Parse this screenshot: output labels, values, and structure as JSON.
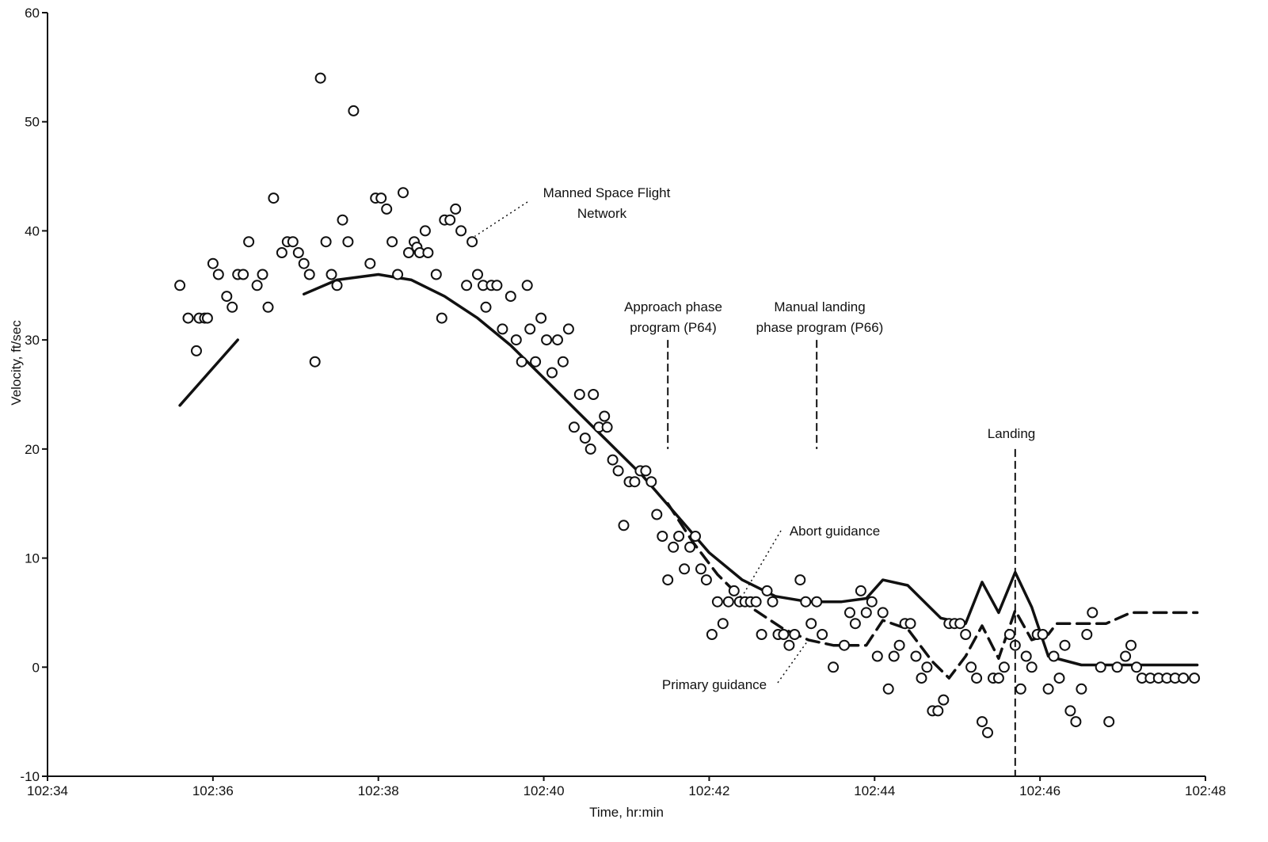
{
  "chart_data": {
    "type": "line",
    "xlabel": "Time, hr:min",
    "ylabel": "Velocity, ft/sec",
    "xlim": [
      "102:34",
      "102:48"
    ],
    "ylim": [
      -10,
      60
    ],
    "x_ticks": [
      "102:34",
      "102:36",
      "102:38",
      "102:40",
      "102:42",
      "102:44",
      "102:46",
      "102:48"
    ],
    "y_ticks": [
      -10,
      0,
      10,
      20,
      30,
      40,
      50,
      60
    ],
    "grid": false,
    "series": [
      {
        "name": "Abort guidance",
        "style": "solid",
        "points": [
          [
            "102:35:36",
            24
          ],
          [
            "102:36:18",
            30
          ],
          null,
          [
            "102:37:06",
            34.2
          ],
          [
            "102:37:30",
            35.5
          ],
          [
            "102:38:00",
            36
          ],
          [
            "102:38:24",
            35.5
          ],
          [
            "102:38:48",
            34
          ],
          [
            "102:39:12",
            32
          ],
          [
            "102:39:36",
            29.5
          ],
          [
            "102:40:00",
            26.5
          ],
          [
            "102:40:24",
            23.5
          ],
          [
            "102:40:48",
            20.5
          ],
          [
            "102:41:12",
            17.5
          ],
          [
            "102:41:36",
            14
          ],
          [
            "102:42:00",
            10.5
          ],
          [
            "102:42:24",
            8
          ],
          [
            "102:42:48",
            6.5
          ],
          [
            "102:43:12",
            6
          ],
          [
            "102:43:36",
            6
          ],
          [
            "102:43:54",
            6.3
          ],
          [
            "102:44:06",
            8
          ],
          [
            "102:44:24",
            7.5
          ],
          [
            "102:44:48",
            4.5
          ],
          [
            "102:45:06",
            4
          ],
          [
            "102:45:18",
            7.8
          ],
          [
            "102:45:30",
            5
          ],
          [
            "102:45:42",
            8.7
          ],
          [
            "102:45:54",
            5.5
          ],
          [
            "102:46:06",
            1
          ],
          [
            "102:46:30",
            0.2
          ],
          [
            "102:47:30",
            0.2
          ],
          [
            "102:47:54",
            0.2
          ]
        ]
      },
      {
        "name": "Primary guidance",
        "style": "dashed",
        "points": [
          [
            "102:41:30",
            15
          ],
          [
            "102:41:48",
            11.5
          ],
          [
            "102:42:06",
            8.5
          ],
          [
            "102:42:30",
            5.5
          ],
          [
            "102:42:54",
            3.5
          ],
          [
            "102:43:12",
            2.5
          ],
          [
            "102:43:30",
            2
          ],
          [
            "102:43:54",
            2
          ],
          [
            "102:44:06",
            4.3
          ],
          [
            "102:44:24",
            3.5
          ],
          [
            "102:44:42",
            0.5
          ],
          [
            "102:44:54",
            -1
          ],
          [
            "102:45:06",
            1
          ],
          [
            "102:45:18",
            3.8
          ],
          [
            "102:45:30",
            0.8
          ],
          [
            "102:45:42",
            5.2
          ],
          [
            "102:45:54",
            2.5
          ],
          [
            "102:46:06",
            3
          ],
          [
            "102:46:12",
            4
          ],
          [
            "102:46:48",
            4
          ],
          [
            "102:47:06",
            5
          ],
          [
            "102:47:54",
            5
          ]
        ]
      }
    ],
    "scatter": {
      "name": "Manned Space Flight Network",
      "marker": "open-circle",
      "points": [
        [
          "102:35:36",
          35
        ],
        [
          "102:35:42",
          32
        ],
        [
          "102:35:48",
          29
        ],
        [
          "102:35:50",
          32
        ],
        [
          "102:35:54",
          32
        ],
        [
          "102:35:56",
          32
        ],
        [
          "102:36:00",
          37
        ],
        [
          "102:36:04",
          36
        ],
        [
          "102:36:10",
          34
        ],
        [
          "102:36:14",
          33
        ],
        [
          "102:36:18",
          36
        ],
        [
          "102:36:22",
          36
        ],
        [
          "102:36:26",
          39
        ],
        [
          "102:36:32",
          35
        ],
        [
          "102:36:36",
          36
        ],
        [
          "102:36:40",
          33
        ],
        [
          "102:36:44",
          43
        ],
        [
          "102:36:50",
          38
        ],
        [
          "102:36:54",
          39
        ],
        [
          "102:36:58",
          39
        ],
        [
          "102:37:02",
          38
        ],
        [
          "102:37:06",
          37
        ],
        [
          "102:37:10",
          36
        ],
        [
          "102:37:14",
          28
        ],
        [
          "102:37:18",
          54
        ],
        [
          "102:37:22",
          39
        ],
        [
          "102:37:26",
          36
        ],
        [
          "102:37:30",
          35
        ],
        [
          "102:37:34",
          41
        ],
        [
          "102:37:38",
          39
        ],
        [
          "102:37:42",
          51
        ],
        [
          "102:37:54",
          37
        ],
        [
          "102:37:58",
          43
        ],
        [
          "102:38:02",
          43
        ],
        [
          "102:38:06",
          42
        ],
        [
          "102:38:10",
          39
        ],
        [
          "102:38:14",
          36
        ],
        [
          "102:38:18",
          43.5
        ],
        [
          "102:38:22",
          38
        ],
        [
          "102:38:26",
          39
        ],
        [
          "102:38:28",
          38.5
        ],
        [
          "102:38:30",
          38
        ],
        [
          "102:38:34",
          40
        ],
        [
          "102:38:36",
          38
        ],
        [
          "102:38:42",
          36
        ],
        [
          "102:38:46",
          32
        ],
        [
          "102:38:48",
          41
        ],
        [
          "102:38:52",
          41
        ],
        [
          "102:38:56",
          42
        ],
        [
          "102:39:00",
          40
        ],
        [
          "102:39:04",
          35
        ],
        [
          "102:39:08",
          39
        ],
        [
          "102:39:12",
          36
        ],
        [
          "102:39:16",
          35
        ],
        [
          "102:39:18",
          33
        ],
        [
          "102:39:22",
          35
        ],
        [
          "102:39:26",
          35
        ],
        [
          "102:39:30",
          31
        ],
        [
          "102:39:36",
          34
        ],
        [
          "102:39:40",
          30
        ],
        [
          "102:39:44",
          28
        ],
        [
          "102:39:48",
          35
        ],
        [
          "102:39:50",
          31
        ],
        [
          "102:39:54",
          28
        ],
        [
          "102:39:58",
          32
        ],
        [
          "102:40:02",
          30
        ],
        [
          "102:40:06",
          27
        ],
        [
          "102:40:10",
          30
        ],
        [
          "102:40:14",
          28
        ],
        [
          "102:40:18",
          31
        ],
        [
          "102:40:22",
          22
        ],
        [
          "102:40:26",
          25
        ],
        [
          "102:40:30",
          21
        ],
        [
          "102:40:34",
          20
        ],
        [
          "102:40:36",
          25
        ],
        [
          "102:40:40",
          22
        ],
        [
          "102:40:44",
          23
        ],
        [
          "102:40:46",
          22
        ],
        [
          "102:40:50",
          19
        ],
        [
          "102:40:54",
          18
        ],
        [
          "102:40:58",
          13
        ],
        [
          "102:41:02",
          17
        ],
        [
          "102:41:06",
          17
        ],
        [
          "102:41:10",
          18
        ],
        [
          "102:41:14",
          18
        ],
        [
          "102:41:18",
          17
        ],
        [
          "102:41:22",
          14
        ],
        [
          "102:41:26",
          12
        ],
        [
          "102:41:30",
          8
        ],
        [
          "102:41:34",
          11
        ],
        [
          "102:41:38",
          12
        ],
        [
          "102:41:42",
          9
        ],
        [
          "102:41:46",
          11
        ],
        [
          "102:41:50",
          12
        ],
        [
          "102:41:54",
          9
        ],
        [
          "102:41:58",
          8
        ],
        [
          "102:42:02",
          3
        ],
        [
          "102:42:06",
          6
        ],
        [
          "102:42:10",
          4
        ],
        [
          "102:42:14",
          6
        ],
        [
          "102:42:18",
          7
        ],
        [
          "102:42:22",
          6
        ],
        [
          "102:42:26",
          6
        ],
        [
          "102:42:30",
          6
        ],
        [
          "102:42:34",
          6
        ],
        [
          "102:42:38",
          3
        ],
        [
          "102:42:42",
          7
        ],
        [
          "102:42:46",
          6
        ],
        [
          "102:42:50",
          3
        ],
        [
          "102:42:54",
          3
        ],
        [
          "102:42:58",
          2
        ],
        [
          "102:43:02",
          3
        ],
        [
          "102:43:06",
          8
        ],
        [
          "102:43:10",
          6
        ],
        [
          "102:43:14",
          4
        ],
        [
          "102:43:18",
          6
        ],
        [
          "102:43:22",
          3
        ],
        [
          "102:43:30",
          0
        ],
        [
          "102:43:38",
          2
        ],
        [
          "102:43:42",
          5
        ],
        [
          "102:43:46",
          4
        ],
        [
          "102:43:50",
          7
        ],
        [
          "102:43:54",
          5
        ],
        [
          "102:43:58",
          6
        ],
        [
          "102:44:02",
          1
        ],
        [
          "102:44:06",
          5
        ],
        [
          "102:44:10",
          -2
        ],
        [
          "102:44:14",
          1
        ],
        [
          "102:44:18",
          2
        ],
        [
          "102:44:22",
          4
        ],
        [
          "102:44:26",
          4
        ],
        [
          "102:44:30",
          1
        ],
        [
          "102:44:34",
          -1
        ],
        [
          "102:44:38",
          0
        ],
        [
          "102:44:42",
          -4
        ],
        [
          "102:44:46",
          -4
        ],
        [
          "102:44:50",
          -3
        ],
        [
          "102:44:54",
          4
        ],
        [
          "102:44:58",
          4
        ],
        [
          "102:45:02",
          4
        ],
        [
          "102:45:06",
          3
        ],
        [
          "102:45:10",
          0
        ],
        [
          "102:45:14",
          -1
        ],
        [
          "102:45:18",
          -5
        ],
        [
          "102:45:22",
          -6
        ],
        [
          "102:45:26",
          -1
        ],
        [
          "102:45:30",
          -1
        ],
        [
          "102:45:34",
          0
        ],
        [
          "102:45:38",
          3
        ],
        [
          "102:45:42",
          2
        ],
        [
          "102:45:46",
          -2
        ],
        [
          "102:45:50",
          1
        ],
        [
          "102:45:54",
          0
        ],
        [
          "102:45:58",
          3
        ],
        [
          "102:46:02",
          3
        ],
        [
          "102:46:06",
          -2
        ],
        [
          "102:46:10",
          1
        ],
        [
          "102:46:14",
          -1
        ],
        [
          "102:46:18",
          2
        ],
        [
          "102:46:22",
          -4
        ],
        [
          "102:46:26",
          -5
        ],
        [
          "102:46:30",
          -2
        ],
        [
          "102:46:34",
          3
        ],
        [
          "102:46:38",
          5
        ],
        [
          "102:46:44",
          0
        ],
        [
          "102:46:50",
          -5
        ],
        [
          "102:46:56",
          0
        ],
        [
          "102:47:02",
          1
        ],
        [
          "102:47:06",
          2
        ],
        [
          "102:47:10",
          0
        ],
        [
          "102:47:14",
          -1
        ],
        [
          "102:47:20",
          -1
        ],
        [
          "102:47:26",
          -1
        ],
        [
          "102:47:32",
          -1
        ],
        [
          "102:47:38",
          -1
        ],
        [
          "102:47:44",
          -1
        ],
        [
          "102:47:52",
          -1
        ]
      ]
    },
    "event_markers": [
      {
        "label_lines": [
          "Approach phase",
          "program (P64)"
        ],
        "x": "102:41:30",
        "from_y": 20,
        "to_y": 30
      },
      {
        "label_lines": [
          "Manual landing",
          "phase program (P66)"
        ],
        "x": "102:43:18",
        "from_y": 20,
        "to_y": 30
      },
      {
        "label_lines": [
          "Landing"
        ],
        "x": "102:45:42",
        "from_y": -10,
        "to_y": 20
      }
    ],
    "annotations": [
      {
        "label_lines": [
          "Manned Space Flight",
          "Network"
        ],
        "target": [
          "102:39:10",
          39.5
        ]
      },
      {
        "label_lines": [
          "Abort guidance"
        ],
        "target": [
          "102:42:24",
          6.5
        ]
      },
      {
        "label_lines": [
          "Primary guidance"
        ],
        "target": [
          "102:43:12",
          2.5
        ]
      }
    ]
  }
}
